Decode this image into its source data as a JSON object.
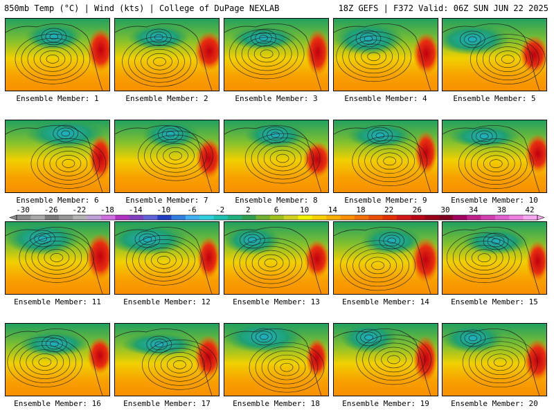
{
  "header": {
    "left": "850mb Temp (°C) | Wind (kts) | College of DuPage NEXLAB",
    "right": "18Z GEFS | F372 Valid: 06Z SUN JUN 22 2025"
  },
  "member_prefix": "Ensemble Member:",
  "members": [
    "1",
    "2",
    "3",
    "4",
    "5",
    "6",
    "7",
    "8",
    "9",
    "10",
    "11",
    "12",
    "13",
    "14",
    "15",
    "16",
    "17",
    "18",
    "19",
    "20"
  ],
  "colorbar": {
    "labels": [
      "-30",
      "-26",
      "-22",
      "-18",
      "-14",
      "-10",
      "-6",
      "-2",
      "2",
      "6",
      "10",
      "14",
      "18",
      "22",
      "26",
      "30",
      "34",
      "38",
      "42"
    ],
    "colors": [
      "#8c8c8c",
      "#a8a8a8",
      "#7a7a7a",
      "#969696",
      "#b4b4b4",
      "#bfa0d8",
      "#d070e0",
      "#b030c0",
      "#8040c0",
      "#6060d8",
      "#2040c0",
      "#3080e0",
      "#40b0f0",
      "#30d0e0",
      "#20c0b0",
      "#20b080",
      "#30a050",
      "#70b030",
      "#a0c020",
      "#d0d020",
      "#f0f000",
      "#f8d000",
      "#f8b000",
      "#f89000",
      "#f07000",
      "#e85000",
      "#e03000",
      "#d01818",
      "#b80818",
      "#980018",
      "#800020",
      "#a00060",
      "#c0208c",
      "#d040b0",
      "#e060d0",
      "#f080e0",
      "#f8a8f0"
    ]
  }
}
